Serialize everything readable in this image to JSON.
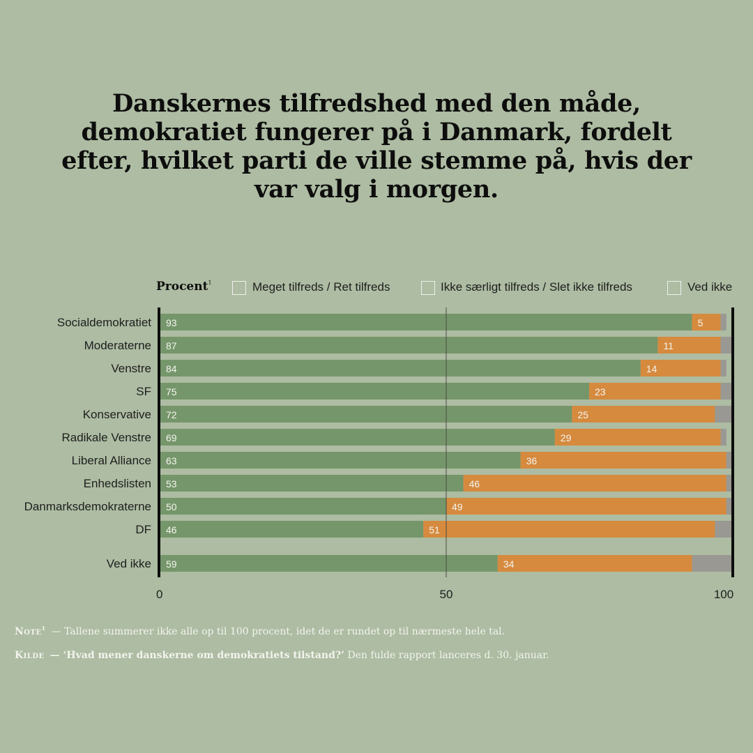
{
  "title": "Danskernes tilfredshed med den måde, demokratiet fungerer på i Danmark, fordelt efter, hvilket parti de ville stemme på, hvis der var valg i morgen.",
  "legend": {
    "unit_label": "Procent",
    "unit_sup": "1",
    "items": [
      {
        "label": "Meget tilfreds / Ret tilfreds",
        "color": "#75966a"
      },
      {
        "label": "Ikke særligt tilfreds / Slet ikke tilfreds",
        "color": "#d68a3e"
      },
      {
        "label": "Ved ikke",
        "color": "#999893"
      }
    ]
  },
  "chart_data": {
    "type": "bar",
    "orientation": "horizontal",
    "stacked": true,
    "categories": [
      "Socialdemokratiet",
      "Moderaterne",
      "Venstre",
      "SF",
      "Konservative",
      "Radikale Venstre",
      "Liberal Alliance",
      "Enhedslisten",
      "Danmarksdemokraterne",
      "DF",
      "Ved ikke"
    ],
    "series": [
      {
        "name": "Meget tilfreds / Ret tilfreds",
        "color": "#75966a",
        "values": [
          93,
          87,
          84,
          75,
          72,
          69,
          63,
          53,
          50,
          46,
          59
        ],
        "labeled": true
      },
      {
        "name": "Ikke særligt tilfreds / Slet ikke tilfreds",
        "color": "#d68a3e",
        "values": [
          5,
          11,
          14,
          23,
          25,
          29,
          36,
          46,
          49,
          51,
          34
        ],
        "labeled": true
      },
      {
        "name": "Ved ikke",
        "color": "#999893",
        "values": [
          1,
          2,
          1,
          2,
          3,
          1,
          1,
          1,
          1,
          3,
          7
        ],
        "labeled": false
      }
    ],
    "xlim": [
      0,
      100
    ],
    "xticks": [
      0,
      50,
      100
    ],
    "gridlines": [
      50
    ]
  },
  "notes": [
    {
      "key": "Note",
      "sup": "1",
      "text": "— Tallene summerer ikke alle op til 100 procent, idet de er rundet op til nærmeste hele tal."
    },
    {
      "key": "Kilde",
      "sup": "",
      "strong": "— ‘Hvad mener danskerne om demokratiets tilstand?’",
      "text": " Den fulde rapport lanceres d. 30. januar."
    }
  ]
}
